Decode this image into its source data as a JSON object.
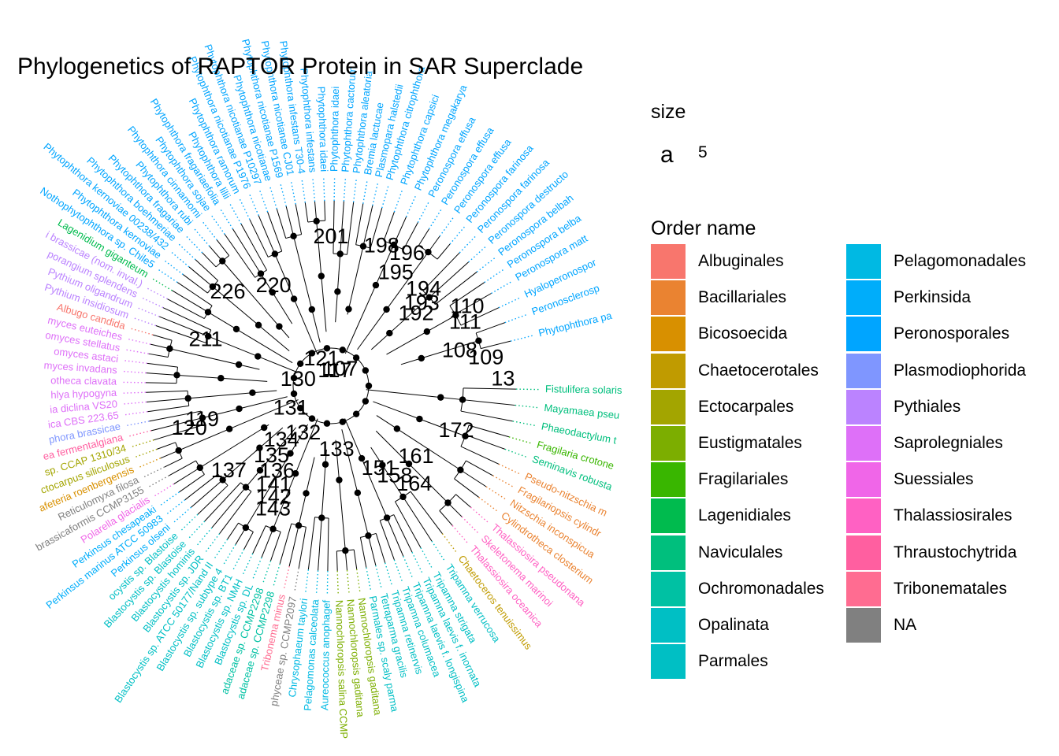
{
  "chart_data": {
    "type": "circular phylogenetic tree",
    "title": "Phylogenetics of RAPTOR Protein in SAR Superclade",
    "legend": {
      "size_title": "size",
      "size_key": "a",
      "size_value": "5",
      "color_title": "Order name",
      "orders": [
        {
          "name": "Albuginales",
          "color": "#F8766D"
        },
        {
          "name": "Bacillariales",
          "color": "#EA8331"
        },
        {
          "name": "Bicosoecida",
          "color": "#D89000"
        },
        {
          "name": "Chaetocerotales",
          "color": "#C09B00"
        },
        {
          "name": "Ectocarpales",
          "color": "#A3A500"
        },
        {
          "name": "Eustigmatales",
          "color": "#7CAE00"
        },
        {
          "name": "Fragilariales",
          "color": "#39B600"
        },
        {
          "name": "Lagenidiales",
          "color": "#00BB4E"
        },
        {
          "name": "Naviculales",
          "color": "#00BF7D"
        },
        {
          "name": "Ochromonadales",
          "color": "#00C1A3"
        },
        {
          "name": "Opalinata",
          "color": "#00BFC4"
        },
        {
          "name": "Parmales",
          "color": "#00BFC4"
        },
        {
          "name": "Pelagomonadales",
          "color": "#00B9E3"
        },
        {
          "name": "Perkinsida",
          "color": "#00ADFA"
        },
        {
          "name": "Peronosporales",
          "color": "#00A5FF"
        },
        {
          "name": "Plasmodiophorida",
          "color": "#7F96FF"
        },
        {
          "name": "Pythiales",
          "color": "#BB83FF"
        },
        {
          "name": "Saprolegniales",
          "color": "#DE70F8"
        },
        {
          "name": "Suessiales",
          "color": "#F066E8"
        },
        {
          "name": "Thalassiosirales",
          "color": "#FF61C3"
        },
        {
          "name": "Thraustochytrida",
          "color": "#FF5FA0"
        },
        {
          "name": "Tribonematales",
          "color": "#FF6C91"
        },
        {
          "name": "NA",
          "color": "#808080"
        }
      ]
    },
    "tips": [
      {
        "label": "Fistulifera solaris",
        "order": "Naviculales",
        "angle": 1
      },
      {
        "label": "Mayamaea pseu",
        "order": "Naviculales",
        "angle": 6
      },
      {
        "label": "Phaeodactylum t",
        "order": "Naviculales",
        "angle": 11
      },
      {
        "label": "Fragilaria crotone",
        "order": "Fragilariales",
        "angle": 16
      },
      {
        "label": "Seminavis robusta",
        "order": "Naviculales",
        "angle": 20
      },
      {
        "label": "Pseudo-nitzschia m",
        "order": "Bacillariales",
        "angle": 25
      },
      {
        "label": "Fragilariopsis cylindr",
        "order": "Bacillariales",
        "angle": 29
      },
      {
        "label": "Nitzschia inconspicua",
        "order": "Bacillariales",
        "angle": 33
      },
      {
        "label": "Cylindrotheca closterium",
        "order": "Bacillariales",
        "angle": 37
      },
      {
        "label": "Thalassiosira pseudonana",
        "order": "Thalassiosirales",
        "angle": 41
      },
      {
        "label": "Skeletonema marinoi",
        "order": "Thalassiosirales",
        "angle": 45
      },
      {
        "label": "Thalassiosira oceanica",
        "order": "Thalassiosirales",
        "angle": 49
      },
      {
        "label": "Chaetoceros tenuissimus",
        "order": "Chaetocerotales",
        "angle": 53
      },
      {
        "label": "Tripamna verrucosa",
        "order": "Parmales",
        "angle": 57
      },
      {
        "label": "Tripamna strigata",
        "order": "Parmales",
        "angle": 61
      },
      {
        "label": "Tripamna laevis f. inornata",
        "order": "Parmales",
        "angle": 64
      },
      {
        "label": "Tripamna laevis f. longispina",
        "order": "Parmales",
        "angle": 67
      },
      {
        "label": "Tripamna columacea",
        "order": "Parmales",
        "angle": 70
      },
      {
        "label": "Tripamna retinervis",
        "order": "Parmales",
        "angle": 73
      },
      {
        "label": "Tetraparma gracilis",
        "order": "Parmales",
        "angle": 76
      },
      {
        "label": "Parmales sp. scaly parma",
        "order": "Parmales",
        "angle": 79
      },
      {
        "label": "Nannochloropsis gaditana",
        "order": "Eustigmatales",
        "angle": 82
      },
      {
        "label": "Nannochloropsis gaditana",
        "order": "Eustigmatales",
        "angle": 85
      },
      {
        "label": "Nannochloropsis salina CCMP",
        "order": "Eustigmatales",
        "angle": 88
      },
      {
        "label": "Aureococcus anophagef",
        "order": "Pelagomonadales",
        "angle": 91
      },
      {
        "label": "Pelagomonas calceolata",
        "order": "Pelagomonadales",
        "angle": 94
      },
      {
        "label": "Chrysophaeum taylori",
        "order": "Pelagomonadales",
        "angle": 97
      },
      {
        "label": "phyceae sp. CCMP2097",
        "order": "NA",
        "angle": 100
      },
      {
        "label": "Tribonema minus",
        "order": "Tribonematales",
        "angle": 103
      },
      {
        "label": "adaceae sp. CCMP2298",
        "order": "Ochromonadales",
        "angle": 106
      },
      {
        "label": "adaceae sp. CCMP2298",
        "order": "Ochromonadales",
        "angle": 109
      },
      {
        "label": "Blastocystis sp. DL",
        "order": "Opalinata",
        "angle": 112
      },
      {
        "label": "Blastocystis sp. NMH",
        "order": "Opalinata",
        "angle": 115
      },
      {
        "label": "Blastocystis sp. BT1",
        "order": "Opalinata",
        "angle": 118
      },
      {
        "label": "Blastocystis sp. subtype 4",
        "order": "Opalinata",
        "angle": 121
      },
      {
        "label": "Blastocystis sp. ATCC 50177/Nand II",
        "order": "Opalinata",
        "angle": 124
      },
      {
        "label": "Blastocystis sp. JDR",
        "order": "Opalinata",
        "angle": 127
      },
      {
        "label": "Blastocystis hominis",
        "order": "Opalinata",
        "angle": 130
      },
      {
        "label": "Blastocystis sp. Blastoise",
        "order": "Opalinata",
        "angle": 133
      },
      {
        "label": "ocystis sp. Blastoise",
        "order": "Opalinata",
        "angle": 136
      },
      {
        "label": "Perkinsus olseni",
        "order": "Perkinsida",
        "angle": 139
      },
      {
        "label": "Perkinsus marinus ATCC 50983",
        "order": "Perkinsida",
        "angle": 142
      },
      {
        "label": "Perkinsus chesapeaki",
        "order": "Perkinsida",
        "angle": 145
      },
      {
        "label": "Polarella glacialis",
        "order": "Suessiales",
        "angle": 148
      },
      {
        "label": "brassicaformis CCMP3155",
        "order": "NA",
        "angle": 151
      },
      {
        "label": "Reticulomyxa filosa",
        "order": "NA",
        "angle": 154
      },
      {
        "label": "afeteria roenbergensis",
        "order": "Bicosoecida",
        "angle": 157
      },
      {
        "label": "ctocarpus siliculosus",
        "order": "Ectocarpales",
        "angle": 160
      },
      {
        "label": "sp. CCAP 1310/34",
        "order": "Ectocarpales",
        "angle": 163
      },
      {
        "label": "ea fermentalgiana",
        "order": "Thraustochytrida",
        "angle": 166
      },
      {
        "label": "phora brassicae",
        "order": "Plasmodiophorida",
        "angle": 169
      },
      {
        "label": "ica CBS 223.65",
        "order": "Saprolegniales",
        "angle": 172
      },
      {
        "label": "ia diclina VS20",
        "order": "Saprolegniales",
        "angle": 175
      },
      {
        "label": "hlya hypogyna",
        "order": "Saprolegniales",
        "angle": 178
      },
      {
        "label": "otheca clavata",
        "order": "Saprolegniales",
        "angle": 181
      },
      {
        "label": "myces invadans",
        "order": "Saprolegniales",
        "angle": 184
      },
      {
        "label": "omyces astaci",
        "order": "Saprolegniales",
        "angle": 187
      },
      {
        "label": "omyces stellatus",
        "order": "Saprolegniales",
        "angle": 190
      },
      {
        "label": "myces euteiches",
        "order": "Saprolegniales",
        "angle": 193
      },
      {
        "label": "Albugo candida",
        "order": "Albuginales",
        "angle": 196
      },
      {
        "label": "Pythium insidiosum",
        "order": "Pythiales",
        "angle": 199
      },
      {
        "label": "Pythium oligandrum",
        "order": "Pythiales",
        "angle": 202
      },
      {
        "label": "porangium splendens",
        "order": "Pythiales",
        "angle": 205
      },
      {
        "label": "i brassicae (nom. inval.)",
        "order": "Pythiales",
        "angle": 208
      },
      {
        "label": "Lagenidium giganteum",
        "order": "Lagenidiales",
        "angle": 211
      },
      {
        "label": "Nothophytophthora sp. Chile5",
        "order": "Peronosporales",
        "angle": 214
      },
      {
        "label": "Phytophthora kernoviae",
        "order": "Peronosporales",
        "angle": 217
      },
      {
        "label": "Phytophthora kernoviae 00238/432",
        "order": "Peronosporales",
        "angle": 220
      },
      {
        "label": "Phytophthora boehmeriae",
        "order": "Peronosporales",
        "angle": 223
      },
      {
        "label": "Phytophthora fragariae",
        "order": "Peronosporales",
        "angle": 226
      },
      {
        "label": "Phytophthora rubi",
        "order": "Peronosporales",
        "angle": 229
      },
      {
        "label": "Phytophthora cinnamomi",
        "order": "Peronosporales",
        "angle": 232
      },
      {
        "label": "Phytophthora sojae",
        "order": "Peronosporales",
        "angle": 235
      },
      {
        "label": "Phytophthora fragariaefolia",
        "order": "Peronosporales",
        "angle": 238
      },
      {
        "label": "Phytophthora lilii",
        "order": "Peronosporales",
        "angle": 241
      },
      {
        "label": "Phytophthora ramorum",
        "order": "Peronosporales",
        "angle": 244
      },
      {
        "label": "Phytophthora nicotianae P1976",
        "order": "Peronosporales",
        "angle": 247
      },
      {
        "label": "Phytophthora nicotianae P10297",
        "order": "Peronosporales",
        "angle": 250
      },
      {
        "label": "Phytophthora nicotianae",
        "order": "Peronosporales",
        "angle": 253
      },
      {
        "label": "Phytophthora nicotianae P1569",
        "order": "Peronosporales",
        "angle": 256
      },
      {
        "label": "Phytophthora nicotianae CJ01",
        "order": "Peronosporales",
        "angle": 259
      },
      {
        "label": "Phytophthora infestans T30-4",
        "order": "Peronosporales",
        "angle": 262
      },
      {
        "label": "Phytophthora infestans",
        "order": "Peronosporales",
        "angle": 265
      },
      {
        "label": "Phytophthora idaei",
        "order": "Peronosporales",
        "angle": 268
      },
      {
        "label": "Phytophthora idaei",
        "order": "Peronosporales",
        "angle": 271
      },
      {
        "label": "Phytophthora cactorum",
        "order": "Peronosporales",
        "angle": 274
      },
      {
        "label": "Phytophthora aleatoria",
        "order": "Peronosporales",
        "angle": 277
      },
      {
        "label": "Bremia lactucae",
        "order": "Peronosporales",
        "angle": 280
      },
      {
        "label": "Plasmopara halstedii",
        "order": "Peronosporales",
        "angle": 283
      },
      {
        "label": "Phytophthora citrophthora",
        "order": "Peronosporales",
        "angle": 286
      },
      {
        "label": "Phytophthora capsici",
        "order": "Peronosporales",
        "angle": 290
      },
      {
        "label": "Phytophthora megakarya",
        "order": "Peronosporales",
        "angle": 294
      },
      {
        "label": "Peronospora effusa",
        "order": "Peronosporales",
        "angle": 298
      },
      {
        "label": "Peronospora effusa",
        "order": "Peronosporales",
        "angle": 302
      },
      {
        "label": "Peronospora effusa",
        "order": "Peronosporales",
        "angle": 306
      },
      {
        "label": "Peronospora farinosa",
        "order": "Peronosporales",
        "angle": 310
      },
      {
        "label": "Peronospora farinosa",
        "order": "Peronosporales",
        "angle": 314
      },
      {
        "label": "Peronospora destructo",
        "order": "Peronosporales",
        "angle": 318
      },
      {
        "label": "Peronospora belbah",
        "order": "Peronosporales",
        "angle": 322
      },
      {
        "label": "Peronospora belba",
        "order": "Peronosporales",
        "angle": 326
      },
      {
        "label": "Peronospora matt",
        "order": "Peronosporales",
        "angle": 330
      },
      {
        "label": "Hyaloperonospor",
        "order": "Peronosporales",
        "angle": 335
      },
      {
        "label": "Peronosclerosp",
        "order": "Peronosporales",
        "angle": 340
      },
      {
        "label": "Phytophthora pa",
        "order": "Peronosporales",
        "angle": 346
      }
    ],
    "node_labels": [
      {
        "text": "107",
        "angle": 300,
        "radius": 0.1
      },
      {
        "text": "13",
        "angle": 358,
        "radius": 0.93
      },
      {
        "text": "130",
        "angle": 190,
        "radius": 0.18
      },
      {
        "text": "131",
        "angle": 150,
        "radius": 0.25
      },
      {
        "text": "132",
        "angle": 120,
        "radius": 0.3
      },
      {
        "text": "133",
        "angle": 85,
        "radius": 0.35
      },
      {
        "text": "134",
        "angle": 132,
        "radius": 0.4
      },
      {
        "text": "135",
        "angle": 130,
        "radius": 0.5
      },
      {
        "text": "136",
        "angle": 122,
        "radius": 0.55
      },
      {
        "text": "141",
        "angle": 120,
        "radius": 0.62
      },
      {
        "text": "142",
        "angle": 117,
        "radius": 0.68
      },
      {
        "text": "143",
        "angle": 115,
        "radius": 0.74
      },
      {
        "text": "151",
        "angle": 60,
        "radius": 0.52
      },
      {
        "text": "158",
        "angle": 55,
        "radius": 0.6
      },
      {
        "text": "161",
        "angle": 40,
        "radius": 0.6
      },
      {
        "text": "164",
        "angle": 50,
        "radius": 0.7
      },
      {
        "text": "172",
        "angle": 20,
        "radius": 0.72
      },
      {
        "text": "192",
        "angle": 320,
        "radius": 0.6
      },
      {
        "text": "193",
        "angle": 318,
        "radius": 0.66
      },
      {
        "text": "194",
        "angle": 314,
        "radius": 0.72
      },
      {
        "text": "195",
        "angle": 300,
        "radius": 0.7
      },
      {
        "text": "196",
        "angle": 300,
        "radius": 0.82
      },
      {
        "text": "198",
        "angle": 290,
        "radius": 0.8
      },
      {
        "text": "108",
        "angle": 345,
        "radius": 0.72
      },
      {
        "text": "109",
        "angle": 350,
        "radius": 0.85
      },
      {
        "text": "110",
        "angle": 330,
        "radius": 0.85
      },
      {
        "text": "211",
        "angle": 200,
        "radius": 0.72
      },
      {
        "text": "220",
        "angle": 240,
        "radius": 0.62
      },
      {
        "text": "226",
        "angle": 222,
        "radius": 0.75
      },
      {
        "text": "201",
        "angle": 270,
        "radius": 0.8
      },
      {
        "text": "119",
        "angle": 165,
        "radius": 0.72
      },
      {
        "text": "120",
        "angle": 163,
        "radius": 0.8
      },
      {
        "text": "137",
        "angle": 140,
        "radius": 0.72
      },
      {
        "text": "121",
        "angle": 250,
        "radius": 0.15
      },
      {
        "text": "117",
        "angle": 285,
        "radius": 0.08
      },
      {
        "text": "111",
        "angle": 335,
        "radius": 0.8
      }
    ]
  }
}
